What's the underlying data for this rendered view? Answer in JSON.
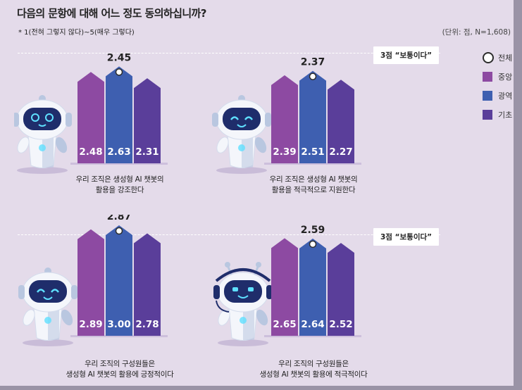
{
  "title": "다음의 문항에 대해 어느 정도 동의하십니까?",
  "subtitle": "* 1(전혀 그렇지 않다)~5(매우 그렇다)",
  "unit_note": "(단위: 점, N=1,608)",
  "reference_label": "3점 “보통이다”",
  "colors": {
    "central": "#8d4aa2",
    "metro": "#3e5fb0",
    "basic": "#5a3e9a",
    "overall_marker": "#ffffff",
    "background": "#e4dbea"
  },
  "legend": [
    {
      "key": "overall",
      "label": "전체",
      "marker": "circle"
    },
    {
      "key": "central",
      "label": "중앙",
      "color": "#8d4aa2"
    },
    {
      "key": "metro",
      "label": "광역",
      "color": "#3e5fb0"
    },
    {
      "key": "basic",
      "label": "기초",
      "color": "#5a3e9a"
    }
  ],
  "chart_data": [
    {
      "type": "bar",
      "caption": [
        "우리 조직은 생성형 AI 챗봇의",
        "활용을 강조한다"
      ],
      "categories": [
        "중앙",
        "광역",
        "기초"
      ],
      "values": [
        2.48,
        2.63,
        2.31
      ],
      "value_labels": [
        "2.48",
        "2.63",
        "2.31"
      ],
      "overall": 2.45,
      "overall_label": "2.45"
    },
    {
      "type": "bar",
      "caption": [
        "우리 조직은 생성형 AI 챗봇의",
        "활용을 적극적으로 지원한다"
      ],
      "categories": [
        "중앙",
        "광역",
        "기초"
      ],
      "values": [
        2.39,
        2.51,
        2.27
      ],
      "value_labels": [
        "2.39",
        "2.51",
        "2.27"
      ],
      "overall": 2.37,
      "overall_label": "2.37"
    },
    {
      "type": "bar",
      "caption": [
        "우리 조직의 구성원들은",
        "생성형 AI 챗봇의 활용에 긍정적이다"
      ],
      "categories": [
        "중앙",
        "광역",
        "기초"
      ],
      "values": [
        2.89,
        3.0,
        2.78
      ],
      "value_labels": [
        "2.89",
        "3.00",
        "2.78"
      ],
      "overall": 2.87,
      "overall_label": "2.87"
    },
    {
      "type": "bar",
      "caption": [
        "우리 조직의 구성원들은",
        "생성형 AI 챗봇의 활용에 적극적이다"
      ],
      "categories": [
        "중앙",
        "광역",
        "기초"
      ],
      "values": [
        2.65,
        2.64,
        2.52
      ],
      "value_labels": [
        "2.65",
        "2.64",
        "2.52"
      ],
      "overall": 2.59,
      "overall_label": "2.59"
    }
  ]
}
